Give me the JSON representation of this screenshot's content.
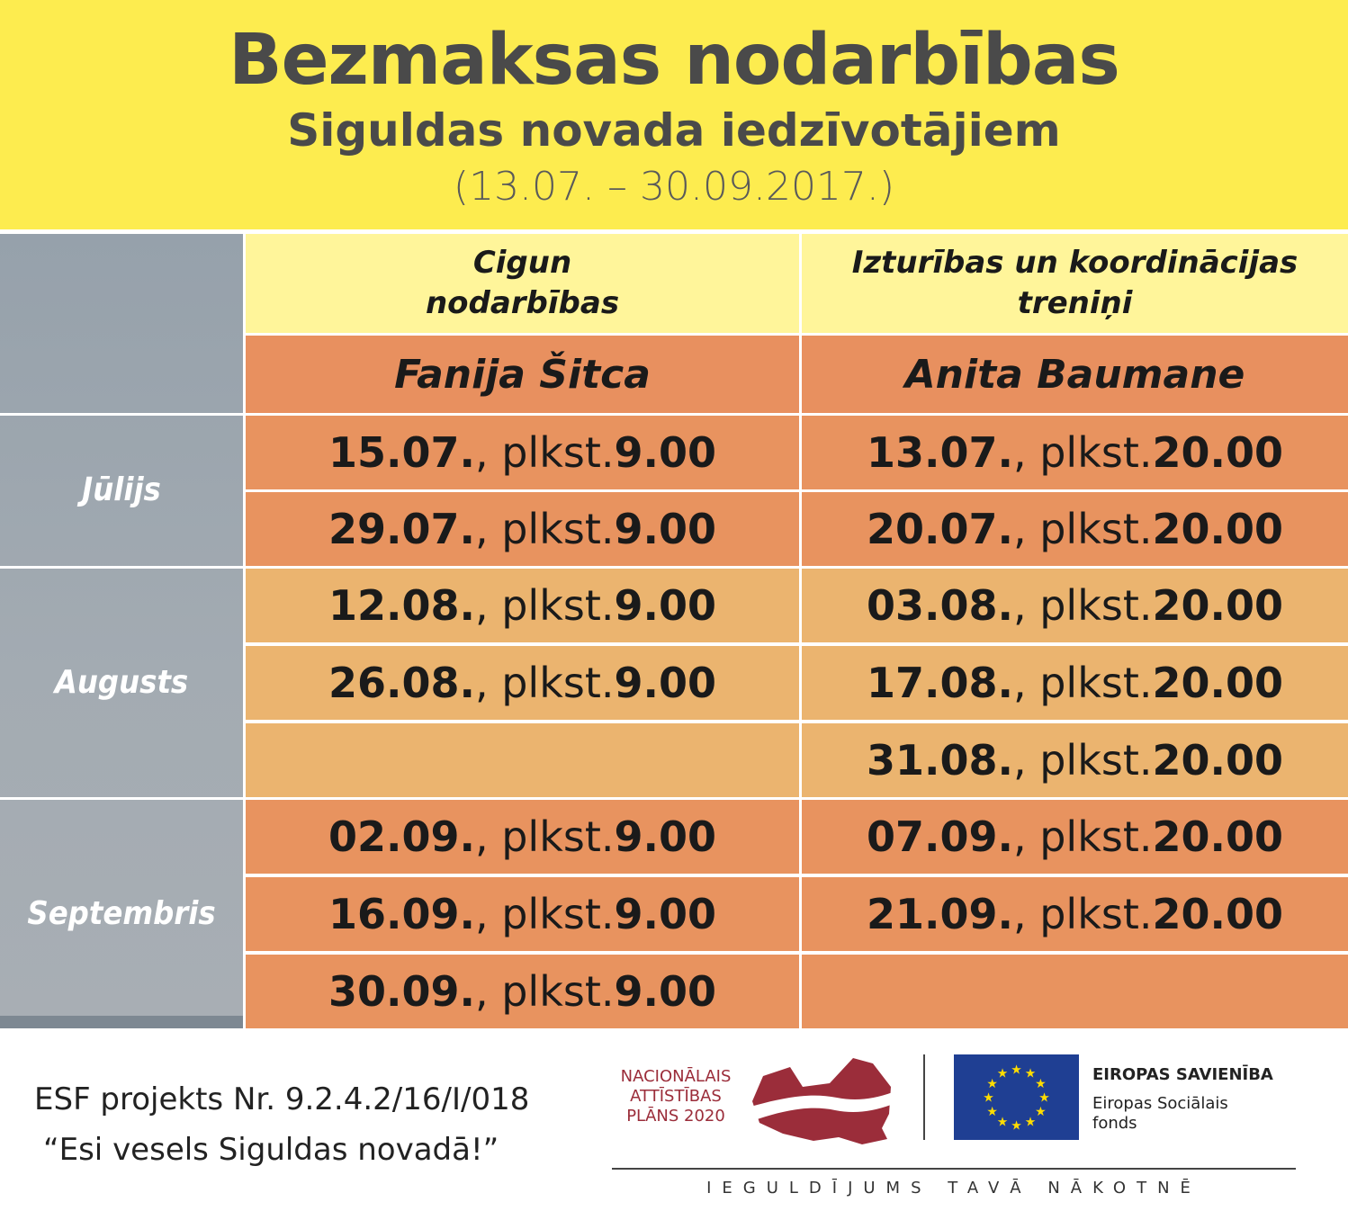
{
  "header": {
    "title": "Bezmaksas nodarbības",
    "subtitle": "Siguldas novada iedzīvotājiem",
    "period": "(13.07. – 30.09.2017.)"
  },
  "columns": [
    {
      "heading": "Cigun nodarbības",
      "trainer": "Fanija Šitca"
    },
    {
      "heading": "Izturības un koordinācijas treniņi",
      "trainer": "Anita Baumane"
    }
  ],
  "months": [
    "Jūlijs",
    "Augusts",
    "Septembris"
  ],
  "schedule": {
    "sep": ", plkst. ",
    "rows": [
      {
        "c1_date": "15.07.",
        "c1_time": "9.00",
        "c2_date": "13.07.",
        "c2_time": "20.00"
      },
      {
        "c1_date": "29.07.",
        "c1_time": "9.00",
        "c2_date": "20.07.",
        "c2_time": "20.00"
      },
      {
        "c1_date": "12.08.",
        "c1_time": "9.00",
        "c2_date": "03.08.",
        "c2_time": "20.00"
      },
      {
        "c1_date": "26.08.",
        "c1_time": "9.00",
        "c2_date": "17.08.",
        "c2_time": "20.00"
      },
      {
        "c1_date": "",
        "c1_time": "",
        "c2_date": "31.08.",
        "c2_time": "20.00"
      },
      {
        "c1_date": "02.09.",
        "c1_time": "9.00",
        "c2_date": "07.09.",
        "c2_time": "20.00"
      },
      {
        "c1_date": "16.09.",
        "c1_time": "9.00",
        "c2_date": "21.09.",
        "c2_time": "20.00"
      },
      {
        "c1_date": "30.09.",
        "c1_time": "9.00",
        "c2_date": "",
        "c2_time": ""
      }
    ]
  },
  "footer": {
    "project": "ESF projekts Nr. 9.2.4.2/16/I/018",
    "motto": "“Esi vesels Siguldas novadā!”",
    "nap_line1": "NACIONĀLAIS",
    "nap_line2": "ATTĪSTĪBAS",
    "nap_line3": "PLĀNS 2020",
    "eu_title": "EIROPAS SAVIENĪBA",
    "eu_line1": "Eiropas Sociālais",
    "eu_line2": "fonds",
    "tagline": "IEGULDĪJUMS TAVĀ NĀKOTNĒ"
  },
  "colors": {
    "header_bg": "#fdec4f",
    "column_head_bg": "#fff59a",
    "orange": "#e8935f",
    "light_orange": "#ebb46f",
    "nap_red": "#9b2d3a",
    "eu_blue": "#1f3f93",
    "eu_star": "#ffdd00"
  }
}
